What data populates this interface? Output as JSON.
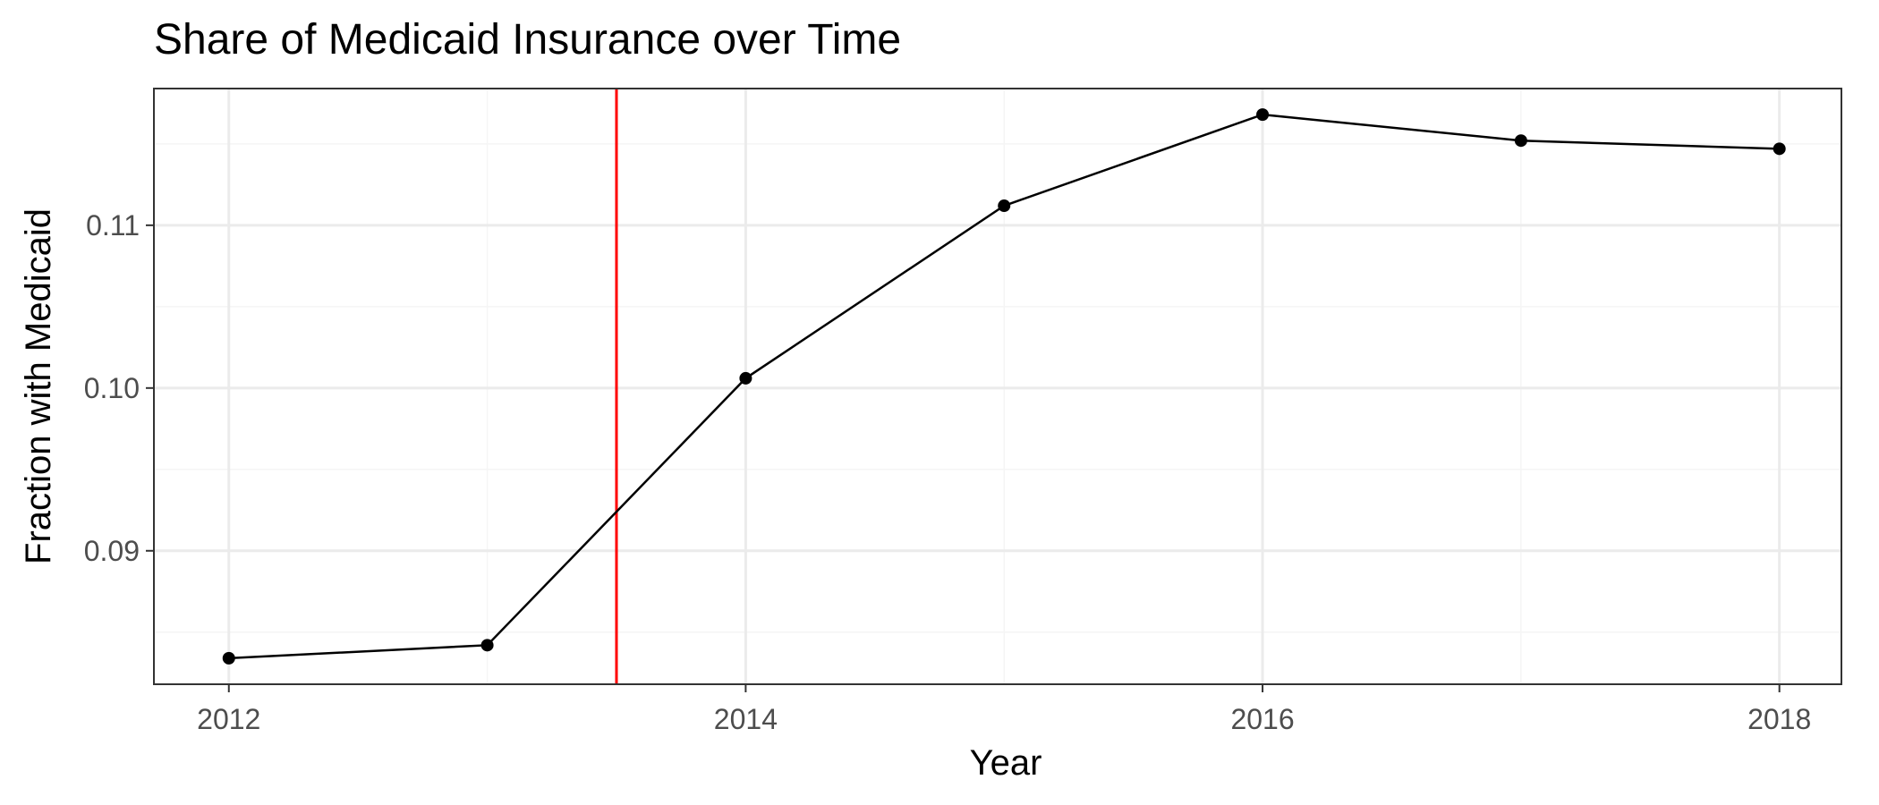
{
  "chart_data": {
    "type": "line",
    "title": "Share of Medicaid Insurance over Time",
    "xlabel": "Year",
    "ylabel": "Fraction with Medicaid",
    "x": [
      2012,
      2013,
      2014,
      2015,
      2016,
      2017,
      2018
    ],
    "series": [
      {
        "values": [
          0.0834,
          0.0842,
          0.1006,
          0.1112,
          0.1168,
          0.1152,
          0.1147
        ]
      }
    ],
    "xlim": [
      2011.71,
      2018.24
    ],
    "ylim": [
      0.0818,
      0.1184
    ],
    "x_ticks": [
      2012,
      2014,
      2016,
      2018
    ],
    "x_tick_labels": [
      "2012",
      "2014",
      "2016",
      "2018"
    ],
    "y_ticks": [
      0.09,
      0.1,
      0.11
    ],
    "y_tick_labels": [
      "0.09",
      "0.10",
      "0.11"
    ],
    "x_minor_ticks": [
      2013,
      2015,
      2017
    ],
    "y_minor_ticks": [
      0.085,
      0.095,
      0.105,
      0.115
    ],
    "reference_line": {
      "orientation": "vertical",
      "x": 2013.5,
      "color": "#ff0000"
    },
    "colors": {
      "line": "#000000",
      "points": "#000000",
      "grid_major": "#ebebeb",
      "grid_minor": "#f5f5f5",
      "panel_border": "#333333"
    },
    "grid": true,
    "legend": "none"
  }
}
